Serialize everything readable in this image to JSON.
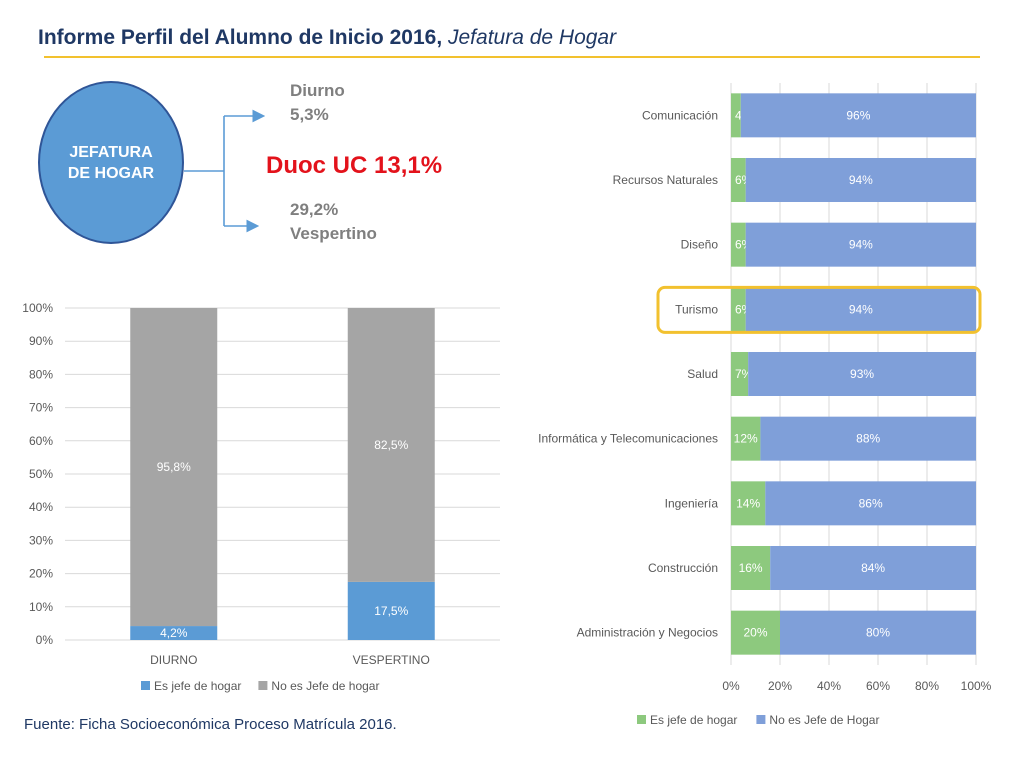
{
  "title": {
    "main": "Informe Perfil del Alumno de Inicio 2016,",
    "italic": "Jefatura de Hogar"
  },
  "circle": {
    "line1": "JEFATURA",
    "line2": "DE HOGAR"
  },
  "diurno": {
    "label": "Diurno",
    "value": "5,3%"
  },
  "duoc": "Duoc UC 13,1%",
  "vespertino": {
    "value": "29,2%",
    "label": "Vespertino"
  },
  "source": "Fuente: Ficha Socioeconómica Proceso Matrícula 2016.",
  "colors": {
    "blue": "#5b9bd5",
    "gray": "#a5a5a5",
    "green": "#8dc97e",
    "navy": "#7f9fd9",
    "highlight": "#f2c12e"
  },
  "chart_data": [
    {
      "type": "bar",
      "stacked": true,
      "orientation": "vertical",
      "categories": [
        "DIURNO",
        "VESPERTINO"
      ],
      "series": [
        {
          "name": "Es jefe de hogar",
          "values": [
            4.2,
            17.5
          ],
          "labels": [
            "4,2%",
            "17,5%"
          ]
        },
        {
          "name": "No es Jefe de hogar",
          "values": [
            95.8,
            82.5
          ],
          "labels": [
            "95,8%",
            "82,5%"
          ]
        }
      ],
      "yticks": [
        "0%",
        "10%",
        "20%",
        "30%",
        "40%",
        "50%",
        "60%",
        "70%",
        "80%",
        "90%",
        "100%"
      ],
      "ylim": [
        0,
        100
      ],
      "legend": "bottom"
    },
    {
      "type": "bar",
      "stacked": true,
      "orientation": "horizontal",
      "categories": [
        "Comunicación",
        "Recursos Naturales",
        "Diseño",
        "Turismo",
        "Salud",
        "Informática y Telecomunicaciones",
        "Ingeniería",
        "Construcción",
        "Administración y Negocios"
      ],
      "highlighted": "Turismo",
      "series": [
        {
          "name": "Es jefe de hogar",
          "values": [
            4,
            6,
            6,
            6,
            7,
            12,
            14,
            16,
            20
          ],
          "labels": [
            "4%",
            "6%",
            "6%",
            "6%",
            "7%",
            "12%",
            "14%",
            "16%",
            "20%"
          ]
        },
        {
          "name": "No es Jefe de Hogar",
          "values": [
            96,
            94,
            94,
            94,
            93,
            88,
            86,
            84,
            80
          ],
          "labels": [
            "96%",
            "94%",
            "94%",
            "94%",
            "93%",
            "88%",
            "86%",
            "84%",
            "80%"
          ]
        }
      ],
      "xticks": [
        "0%",
        "20%",
        "40%",
        "60%",
        "80%",
        "100%"
      ],
      "xlim": [
        0,
        100
      ],
      "legend": "bottom"
    }
  ]
}
